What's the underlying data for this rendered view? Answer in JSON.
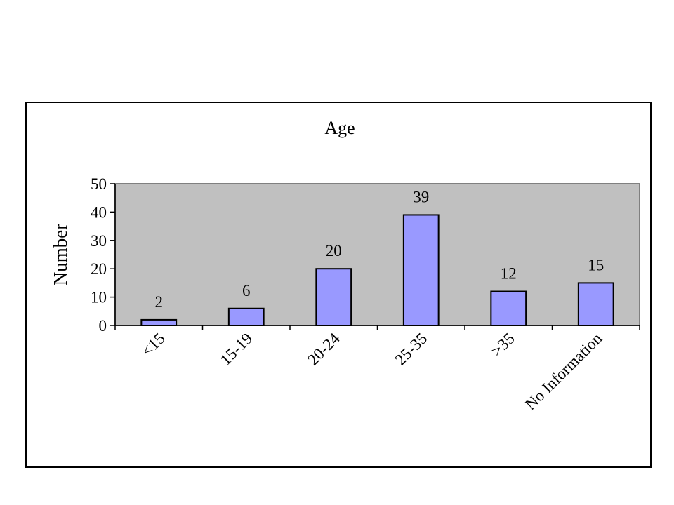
{
  "chart_data": {
    "type": "bar",
    "title": "Age",
    "xlabel": "",
    "ylabel": "Number",
    "categories": [
      "<15",
      "15-19",
      "20-24",
      "25-35",
      ">35",
      "No Information"
    ],
    "values": [
      2,
      6,
      20,
      39,
      12,
      15
    ],
    "ylim": [
      0,
      50
    ],
    "yticks": [
      0,
      10,
      20,
      30,
      40,
      50
    ],
    "grid": false,
    "legend": "none",
    "colors": {
      "bar": "#9999ff",
      "plot_background": "#c0c0c0",
      "border": "#000000"
    }
  }
}
